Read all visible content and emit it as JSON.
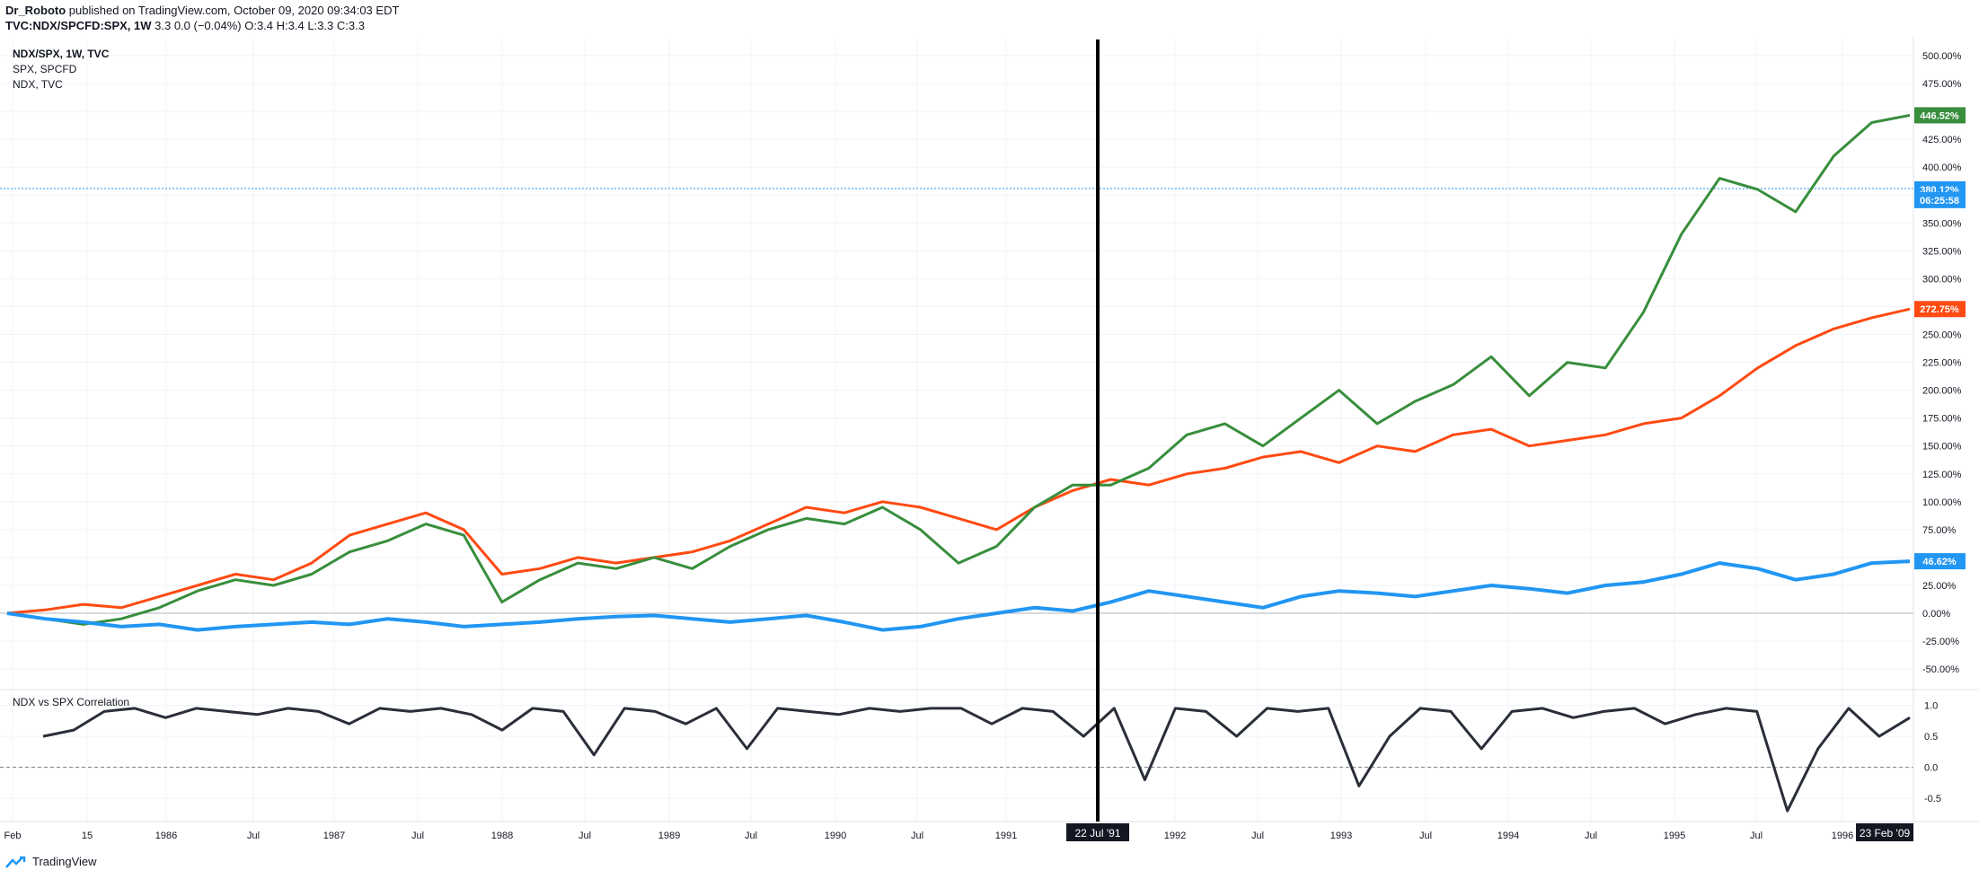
{
  "header": {
    "author": "Dr_Roboto",
    "published_text": "published on TradingView.com, October 09, 2020 09:34:03 EDT",
    "symbol": "TVC:NDX/SPCFD:SPX, 1W",
    "ohlc": "3.3 0.0 (−0.04%) O:3.4 H:3.4 L:3.3 C:3.3"
  },
  "legend": {
    "main": "NDX/SPX, 1W, TVC",
    "spx": "SPX, SPCFD",
    "ndx": "NDX, TVC"
  },
  "indicator": {
    "label": "NDX vs SPX Correlation"
  },
  "footer": {
    "brand": "TradingView"
  },
  "colors": {
    "ratio": "#2196f3",
    "spx": "#ff4a12",
    "ndx": "#388e3c",
    "corr": "#2a2e39",
    "badge_ratio": "#2196f3",
    "badge_time": "#2196f3"
  },
  "price_axis": {
    "ticks": [
      "500.00%",
      "475.00%",
      "450.00%",
      "425.00%",
      "400.00%",
      "375.00%",
      "350.00%",
      "325.00%",
      "300.00%",
      "275.00%",
      "250.00%",
      "225.00%",
      "200.00%",
      "175.00%",
      "150.00%",
      "125.00%",
      "100.00%",
      "75.00%",
      "50.00%",
      "25.00%",
      "0.00%",
      "-25.00%",
      "-50.00%"
    ],
    "badges": [
      {
        "text": "446.52%",
        "color": "#388e3c",
        "value": 446.52
      },
      {
        "text": "380.12%",
        "color": "#2196f3",
        "value": 380.12
      },
      {
        "text": "06:25:58",
        "color": "#2196f3",
        "value": 370.5
      },
      {
        "text": "272.75%",
        "color": "#ff4a12",
        "value": 272.75
      },
      {
        "text": "46.62%",
        "color": "#2196f3",
        "value": 46.62
      }
    ]
  },
  "corr_axis": {
    "ticks": [
      "1.0",
      "0.5",
      "0.0",
      "-0.5"
    ]
  },
  "time_axis": {
    "ticks": [
      "Feb",
      "15",
      "1986",
      "Jul",
      "1987",
      "Jul",
      "1988",
      "Jul",
      "1989",
      "Jul",
      "1990",
      "Jul",
      "1991",
      "1992",
      "Jul",
      "1993",
      "Jul",
      "1994",
      "Jul",
      "1995",
      "Jul",
      "1996"
    ],
    "crosshair_label": "22 Jul '91",
    "last_label": "23 Feb '09"
  },
  "chart_data": {
    "type": "line",
    "x_range": [
      "1985-02",
      "1996-02"
    ],
    "ylim": [
      -60,
      505
    ],
    "series": [
      {
        "name": "SPX, SPCFD",
        "values": [
          0,
          3,
          8,
          5,
          15,
          25,
          35,
          30,
          45,
          70,
          80,
          90,
          75,
          35,
          40,
          50,
          45,
          50,
          55,
          65,
          80,
          95,
          90,
          100,
          95,
          85,
          75,
          95,
          110,
          120,
          115,
          125,
          130,
          140,
          145,
          135,
          150,
          145,
          160,
          165,
          150,
          155,
          160,
          170,
          175,
          195,
          220,
          240,
          255,
          265,
          272.75
        ]
      },
      {
        "name": "NDX, TVC",
        "values": [
          0,
          -5,
          -10,
          -5,
          5,
          20,
          30,
          25,
          35,
          55,
          65,
          80,
          70,
          10,
          30,
          45,
          40,
          50,
          40,
          60,
          75,
          85,
          80,
          95,
          75,
          45,
          60,
          95,
          115,
          115,
          130,
          160,
          170,
          150,
          175,
          200,
          170,
          190,
          205,
          230,
          195,
          225,
          220,
          270,
          340,
          390,
          380,
          360,
          410,
          440,
          446.52
        ]
      },
      {
        "name": "NDX/SPX",
        "values": [
          0,
          -5,
          -8,
          -12,
          -10,
          -15,
          -12,
          -10,
          -8,
          -10,
          -5,
          -8,
          -12,
          -10,
          -8,
          -5,
          -3,
          -2,
          -5,
          -8,
          -5,
          -2,
          -8,
          -15,
          -12,
          -5,
          0,
          5,
          2,
          10,
          20,
          15,
          10,
          5,
          15,
          20,
          18,
          15,
          20,
          25,
          22,
          18,
          25,
          28,
          35,
          45,
          40,
          30,
          35,
          45,
          46.62
        ]
      }
    ],
    "indicator": {
      "name": "NDX vs SPX Correlation",
      "ylim": [
        -0.8,
        1.05
      ],
      "values": [
        0.5,
        0.6,
        0.9,
        0.95,
        0.8,
        0.95,
        0.9,
        0.85,
        0.95,
        0.9,
        0.7,
        0.95,
        0.9,
        0.95,
        0.85,
        0.6,
        0.95,
        0.9,
        0.2,
        0.95,
        0.9,
        0.7,
        0.95,
        0.3,
        0.95,
        0.9,
        0.85,
        0.95,
        0.9,
        0.95,
        0.95,
        0.7,
        0.95,
        0.9,
        0.5,
        0.95,
        -0.2,
        0.95,
        0.9,
        0.5,
        0.95,
        0.9,
        0.95,
        -0.3,
        0.5,
        0.95,
        0.9,
        0.3,
        0.9,
        0.95,
        0.8,
        0.9,
        0.95,
        0.7,
        0.85,
        0.95,
        0.9,
        -0.7,
        0.3,
        0.95,
        0.5,
        0.8
      ]
    }
  }
}
